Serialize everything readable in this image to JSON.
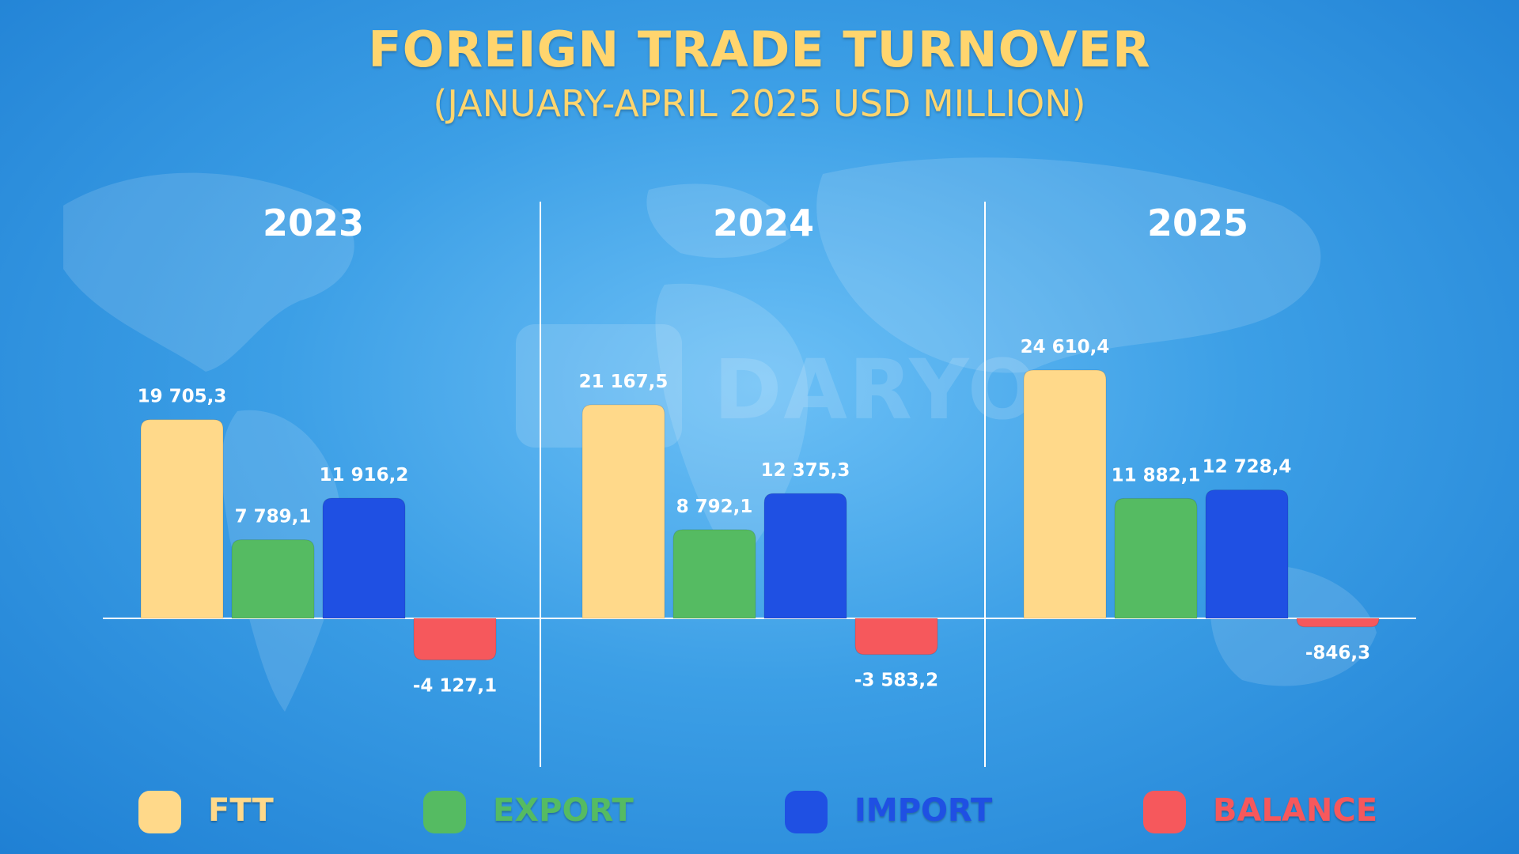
{
  "header": {
    "title": "FOREIGN TRADE TURNOVER",
    "subtitle": "(JANUARY-APRIL 2025 USD MILLION)"
  },
  "watermark": {
    "text": "DARYO"
  },
  "chart_data": {
    "type": "bar",
    "categories": [
      "2023",
      "2024",
      "2025"
    ],
    "series": [
      {
        "name": "FTT",
        "color": "#ffd98a",
        "values": [
          19705.3,
          21167.5,
          24610.4
        ],
        "labels": [
          "19 705,3",
          "21 167,5",
          "24 610,4"
        ]
      },
      {
        "name": "EXPORT",
        "color": "#55bb62",
        "values": [
          7789.1,
          8792.1,
          11882.1
        ],
        "labels": [
          "7 789,1",
          "8 792,1",
          "11 882,1"
        ]
      },
      {
        "name": "IMPORT",
        "color": "#1f50e3",
        "values": [
          11916.2,
          12375.3,
          12728.4
        ],
        "labels": [
          "11 916,2",
          "12 375,3",
          "12 728,4"
        ]
      },
      {
        "name": "BALANCE",
        "color": "#f6585c",
        "values": [
          -4127.1,
          -3583.2,
          -846.3
        ],
        "labels": [
          "-4 127,1",
          "-3 583,2",
          "-846,3"
        ]
      }
    ],
    "legend_position": "bottom",
    "grid": false
  },
  "legend": {
    "items": [
      {
        "label": "FTT",
        "color": "#ffd98a"
      },
      {
        "label": "EXPORT",
        "color": "#55bb62"
      },
      {
        "label": "IMPORT",
        "color": "#1f50e3"
      },
      {
        "label": "BALANCE",
        "color": "#f6585c"
      }
    ]
  }
}
